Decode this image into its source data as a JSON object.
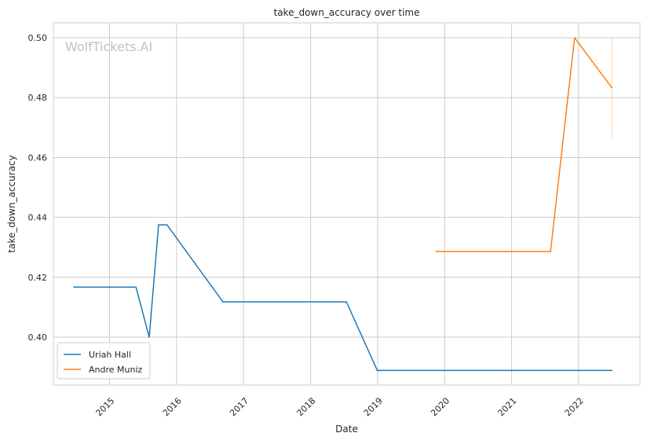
{
  "chart_data": {
    "type": "line",
    "title": "take_down_accuracy over time",
    "xlabel": "Date",
    "ylabel": "take_down_accuracy",
    "watermark": "WolfTickets.AI",
    "xlim": [
      "2014-03-01",
      "2022-12-01"
    ],
    "ylim": [
      0.384,
      0.505
    ],
    "x_ticks": [
      "2015",
      "2016",
      "2017",
      "2018",
      "2019",
      "2020",
      "2021",
      "2022"
    ],
    "y_ticks": [
      "0.40",
      "0.42",
      "0.44",
      "0.46",
      "0.48",
      "0.50"
    ],
    "grid": true,
    "legend_position": "lower-left",
    "series": [
      {
        "name": "Uriah Hall",
        "color": "#1f77b4",
        "points": [
          {
            "x": "2014-06-20",
            "y": 0.4167
          },
          {
            "x": "2015-05-25",
            "y": 0.4167
          },
          {
            "x": "2015-08-05",
            "y": 0.4
          },
          {
            "x": "2015-09-25",
            "y": 0.4375
          },
          {
            "x": "2015-11-10",
            "y": 0.4375
          },
          {
            "x": "2016-09-10",
            "y": 0.4118
          },
          {
            "x": "2018-07-15",
            "y": 0.4118
          },
          {
            "x": "2018-12-30",
            "y": 0.3889
          },
          {
            "x": "2022-07-01",
            "y": 0.3889
          }
        ]
      },
      {
        "name": "Andre Muniz",
        "color": "#ff7f0e",
        "points": [
          {
            "x": "2019-11-15",
            "y": 0.4286
          },
          {
            "x": "2021-08-01",
            "y": 0.4286
          },
          {
            "x": "2021-12-10",
            "y": 0.5
          },
          {
            "x": "2022-07-01",
            "y": 0.4833
          }
        ],
        "interval": {
          "x": "2022-07-01",
          "low": 0.4667,
          "high": 0.5
        }
      }
    ]
  }
}
